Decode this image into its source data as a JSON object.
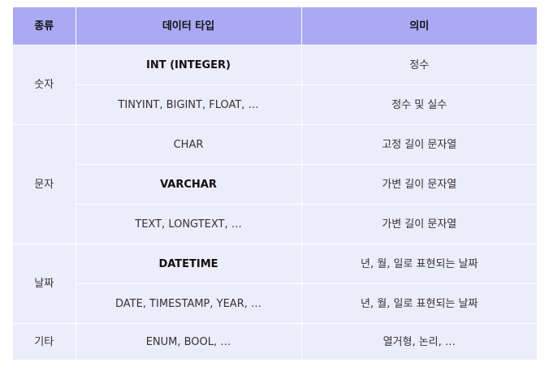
{
  "table": {
    "headers": [
      "종류",
      "데이터 타입",
      "의미"
    ],
    "groups": [
      {
        "category": "숫자",
        "rows": [
          {
            "type": "INT (INTEGER)",
            "type_bold": true,
            "meaning": "정수"
          },
          {
            "type": "TINYINT, BIGINT, FLOAT, …",
            "type_bold": false,
            "meaning": "정수 및 실수"
          }
        ]
      },
      {
        "category": "문자",
        "rows": [
          {
            "type": "CHAR",
            "type_bold": false,
            "meaning": "고정 길이 문자열"
          },
          {
            "type": "VARCHAR",
            "type_bold": true,
            "meaning": "가변 길이 문자열"
          },
          {
            "type": "TEXT, LONGTEXT, …",
            "type_bold": false,
            "meaning": "가변 길이 문자열"
          }
        ]
      },
      {
        "category": "날짜",
        "rows": [
          {
            "type": "DATETIME",
            "type_bold": true,
            "meaning": "년, 월, 일로 표현되는 날짜"
          },
          {
            "type": "DATE, TIMESTAMP, YEAR, …",
            "type_bold": false,
            "meaning": "년, 월, 일로 표현되는 날짜"
          }
        ]
      },
      {
        "category": "기타",
        "rows": [
          {
            "type": "ENUM, BOOL, …",
            "type_bold": false,
            "meaning": "열거형, 논리, …"
          }
        ]
      }
    ]
  },
  "colors": {
    "header_bg": "#aaaaf4",
    "cell_bg": "#ececfb",
    "divider": "#ffffff"
  }
}
